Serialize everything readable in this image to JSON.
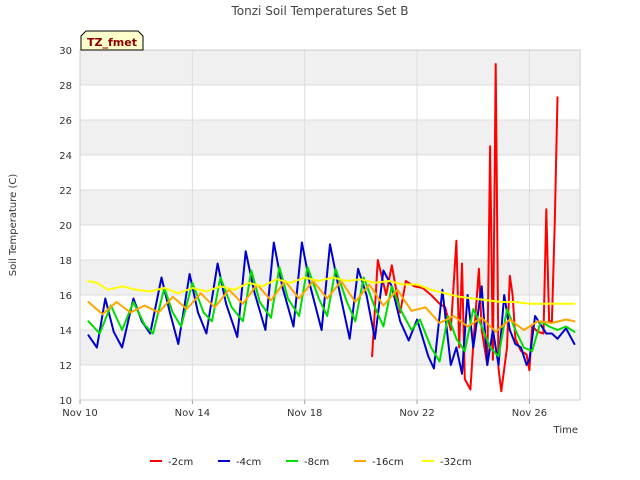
{
  "chart_data": {
    "type": "line",
    "title": "Tonzi Soil Temperatures Set B",
    "xlabel": "Time",
    "ylabel": "Soil Temperature (C)",
    "badge": "TZ_fmet",
    "xlim": [
      10,
      27.8
    ],
    "ylim": [
      10,
      30
    ],
    "x_unit": "day of November",
    "x_ticks": [
      10,
      14,
      18,
      22,
      26
    ],
    "x_tick_labels": [
      "Nov 10",
      "Nov 14",
      "Nov 18",
      "Nov 22",
      "Nov 26"
    ],
    "y_ticks": [
      10,
      12,
      14,
      16,
      18,
      20,
      22,
      24,
      26,
      28,
      30
    ],
    "y_tick_labels": [
      "10",
      "12",
      "14",
      "16",
      "18",
      "20",
      "22",
      "24",
      "26",
      "28",
      "30"
    ],
    "grid": true,
    "legend_position": "bottom",
    "series": [
      {
        "name": "-2cm",
        "color": "#ff0000",
        "points": [
          [
            20.4,
            12.5
          ],
          [
            20.6,
            18.0
          ],
          [
            20.9,
            16.0
          ],
          [
            21.1,
            17.7
          ],
          [
            21.4,
            15.0
          ],
          [
            21.6,
            16.8
          ],
          [
            21.9,
            16.5
          ],
          [
            22.2,
            16.4
          ],
          [
            22.5,
            16.0
          ],
          [
            22.8,
            15.5
          ],
          [
            23.0,
            15.3
          ],
          [
            23.2,
            14.0
          ],
          [
            23.4,
            19.1
          ],
          [
            23.5,
            13.0
          ],
          [
            23.6,
            17.8
          ],
          [
            23.7,
            11.2
          ],
          [
            23.9,
            10.6
          ],
          [
            24.0,
            13.2
          ],
          [
            24.2,
            17.5
          ],
          [
            24.3,
            14.0
          ],
          [
            24.5,
            12.0
          ],
          [
            24.6,
            24.5
          ],
          [
            24.7,
            12.3
          ],
          [
            24.8,
            29.2
          ],
          [
            24.9,
            11.8
          ],
          [
            25.0,
            10.5
          ],
          [
            25.2,
            13.0
          ],
          [
            25.3,
            17.1
          ],
          [
            25.4,
            16.0
          ],
          [
            25.5,
            13.5
          ],
          [
            25.7,
            12.8
          ],
          [
            25.9,
            12.6
          ],
          [
            26.0,
            11.7
          ],
          [
            26.1,
            14.2
          ],
          [
            26.3,
            13.9
          ],
          [
            26.5,
            13.8
          ],
          [
            26.6,
            20.9
          ],
          [
            26.7,
            14.5
          ],
          [
            26.8,
            14.5
          ],
          [
            26.9,
            20.0
          ],
          [
            27.0,
            27.3
          ]
        ]
      },
      {
        "name": "-4cm",
        "color": "#0000cc",
        "points": [
          [
            10.3,
            13.7
          ],
          [
            10.6,
            13.0
          ],
          [
            10.9,
            15.8
          ],
          [
            11.2,
            13.9
          ],
          [
            11.5,
            13.0
          ],
          [
            11.9,
            15.8
          ],
          [
            12.2,
            14.5
          ],
          [
            12.5,
            13.8
          ],
          [
            12.9,
            17.0
          ],
          [
            13.2,
            15.0
          ],
          [
            13.5,
            13.2
          ],
          [
            13.9,
            17.2
          ],
          [
            14.2,
            15.0
          ],
          [
            14.5,
            13.8
          ],
          [
            14.9,
            17.8
          ],
          [
            15.2,
            15.5
          ],
          [
            15.6,
            13.6
          ],
          [
            15.9,
            18.5
          ],
          [
            16.2,
            16.2
          ],
          [
            16.6,
            14.0
          ],
          [
            16.9,
            19.0
          ],
          [
            17.2,
            16.5
          ],
          [
            17.6,
            14.2
          ],
          [
            17.9,
            19.0
          ],
          [
            18.2,
            16.5
          ],
          [
            18.6,
            14.0
          ],
          [
            18.9,
            18.9
          ],
          [
            19.2,
            16.5
          ],
          [
            19.6,
            13.5
          ],
          [
            19.9,
            17.5
          ],
          [
            20.2,
            16.0
          ],
          [
            20.5,
            13.5
          ],
          [
            20.8,
            17.4
          ],
          [
            21.1,
            16.5
          ],
          [
            21.4,
            14.5
          ],
          [
            21.7,
            13.4
          ],
          [
            22.0,
            14.6
          ],
          [
            22.4,
            12.5
          ],
          [
            22.6,
            11.8
          ],
          [
            22.9,
            16.3
          ],
          [
            23.2,
            12.0
          ],
          [
            23.4,
            13.0
          ],
          [
            23.6,
            11.5
          ],
          [
            23.8,
            16.0
          ],
          [
            24.0,
            13.0
          ],
          [
            24.3,
            16.5
          ],
          [
            24.5,
            12.0
          ],
          [
            24.7,
            14.0
          ],
          [
            24.9,
            12.0
          ],
          [
            25.1,
            16.0
          ],
          [
            25.3,
            14.0
          ],
          [
            25.5,
            13.2
          ],
          [
            25.7,
            13.0
          ],
          [
            25.9,
            12.0
          ],
          [
            26.0,
            12.3
          ],
          [
            26.2,
            14.8
          ],
          [
            26.4,
            14.3
          ],
          [
            26.6,
            13.8
          ],
          [
            26.8,
            13.8
          ],
          [
            27.0,
            13.5
          ],
          [
            27.3,
            14.1
          ],
          [
            27.6,
            13.2
          ]
        ]
      },
      {
        "name": "-8cm",
        "color": "#00dd00",
        "points": [
          [
            10.3,
            14.5
          ],
          [
            10.7,
            13.8
          ],
          [
            11.1,
            15.4
          ],
          [
            11.5,
            14.0
          ],
          [
            11.9,
            15.6
          ],
          [
            12.3,
            14.3
          ],
          [
            12.6,
            13.8
          ],
          [
            13.0,
            16.4
          ],
          [
            13.3,
            15.0
          ],
          [
            13.6,
            14.2
          ],
          [
            14.0,
            16.7
          ],
          [
            14.4,
            15.0
          ],
          [
            14.7,
            14.5
          ],
          [
            15.0,
            17.0
          ],
          [
            15.4,
            15.3
          ],
          [
            15.8,
            14.5
          ],
          [
            16.1,
            17.4
          ],
          [
            16.4,
            15.6
          ],
          [
            16.8,
            14.7
          ],
          [
            17.1,
            17.6
          ],
          [
            17.4,
            15.8
          ],
          [
            17.8,
            14.8
          ],
          [
            18.1,
            17.6
          ],
          [
            18.5,
            15.8
          ],
          [
            18.8,
            14.8
          ],
          [
            19.1,
            17.5
          ],
          [
            19.5,
            15.6
          ],
          [
            19.8,
            14.5
          ],
          [
            20.1,
            17.0
          ],
          [
            20.5,
            15.3
          ],
          [
            20.8,
            14.2
          ],
          [
            21.1,
            16.5
          ],
          [
            21.4,
            15.2
          ],
          [
            21.8,
            14.0
          ],
          [
            22.1,
            14.6
          ],
          [
            22.5,
            13.0
          ],
          [
            22.8,
            12.2
          ],
          [
            23.1,
            14.8
          ],
          [
            23.4,
            13.5
          ],
          [
            23.7,
            12.8
          ],
          [
            24.0,
            15.2
          ],
          [
            24.3,
            14.2
          ],
          [
            24.6,
            13.0
          ],
          [
            24.9,
            12.5
          ],
          [
            25.2,
            15.2
          ],
          [
            25.5,
            14.0
          ],
          [
            25.8,
            13.0
          ],
          [
            26.1,
            12.8
          ],
          [
            26.4,
            14.5
          ],
          [
            26.7,
            14.2
          ],
          [
            27.0,
            14.0
          ],
          [
            27.3,
            14.2
          ],
          [
            27.6,
            13.9
          ]
        ]
      },
      {
        "name": "-16cm",
        "color": "#ffa500",
        "points": [
          [
            10.3,
            15.6
          ],
          [
            10.8,
            14.9
          ],
          [
            11.3,
            15.6
          ],
          [
            11.8,
            15.0
          ],
          [
            12.3,
            15.4
          ],
          [
            12.8,
            15.0
          ],
          [
            13.3,
            15.9
          ],
          [
            13.8,
            15.2
          ],
          [
            14.3,
            16.1
          ],
          [
            14.8,
            15.3
          ],
          [
            15.3,
            16.3
          ],
          [
            15.8,
            15.5
          ],
          [
            16.3,
            16.6
          ],
          [
            16.8,
            15.7
          ],
          [
            17.3,
            16.8
          ],
          [
            17.8,
            15.8
          ],
          [
            18.3,
            16.8
          ],
          [
            18.8,
            15.8
          ],
          [
            19.3,
            16.8
          ],
          [
            19.8,
            15.6
          ],
          [
            20.3,
            16.6
          ],
          [
            20.8,
            15.4
          ],
          [
            21.3,
            16.3
          ],
          [
            21.8,
            15.1
          ],
          [
            22.3,
            15.3
          ],
          [
            22.8,
            14.4
          ],
          [
            23.3,
            14.8
          ],
          [
            23.8,
            14.2
          ],
          [
            24.3,
            14.7
          ],
          [
            24.8,
            13.9
          ],
          [
            25.3,
            14.6
          ],
          [
            25.8,
            14.0
          ],
          [
            26.3,
            14.5
          ],
          [
            26.8,
            14.4
          ],
          [
            27.3,
            14.6
          ],
          [
            27.6,
            14.5
          ]
        ]
      },
      {
        "name": "-32cm",
        "color": "#ffff00",
        "points": [
          [
            10.3,
            16.8
          ],
          [
            10.6,
            16.7
          ],
          [
            11.0,
            16.3
          ],
          [
            11.5,
            16.5
          ],
          [
            12.0,
            16.3
          ],
          [
            12.5,
            16.2
          ],
          [
            13.0,
            16.4
          ],
          [
            13.5,
            16.1
          ],
          [
            14.0,
            16.4
          ],
          [
            14.5,
            16.2
          ],
          [
            15.0,
            16.5
          ],
          [
            15.5,
            16.3
          ],
          [
            16.0,
            16.7
          ],
          [
            16.5,
            16.5
          ],
          [
            17.0,
            16.9
          ],
          [
            17.5,
            16.7
          ],
          [
            18.0,
            17.0
          ],
          [
            18.5,
            16.8
          ],
          [
            19.0,
            17.0
          ],
          [
            19.5,
            16.8
          ],
          [
            20.0,
            16.9
          ],
          [
            20.5,
            16.7
          ],
          [
            21.0,
            16.8
          ],
          [
            21.5,
            16.6
          ],
          [
            22.0,
            16.6
          ],
          [
            22.5,
            16.3
          ],
          [
            23.0,
            16.1
          ],
          [
            23.5,
            15.9
          ],
          [
            24.0,
            15.8
          ],
          [
            24.5,
            15.7
          ],
          [
            25.0,
            15.6
          ],
          [
            25.5,
            15.6
          ],
          [
            26.0,
            15.5
          ],
          [
            26.5,
            15.5
          ],
          [
            27.0,
            15.5
          ],
          [
            27.6,
            15.5
          ]
        ]
      }
    ]
  }
}
